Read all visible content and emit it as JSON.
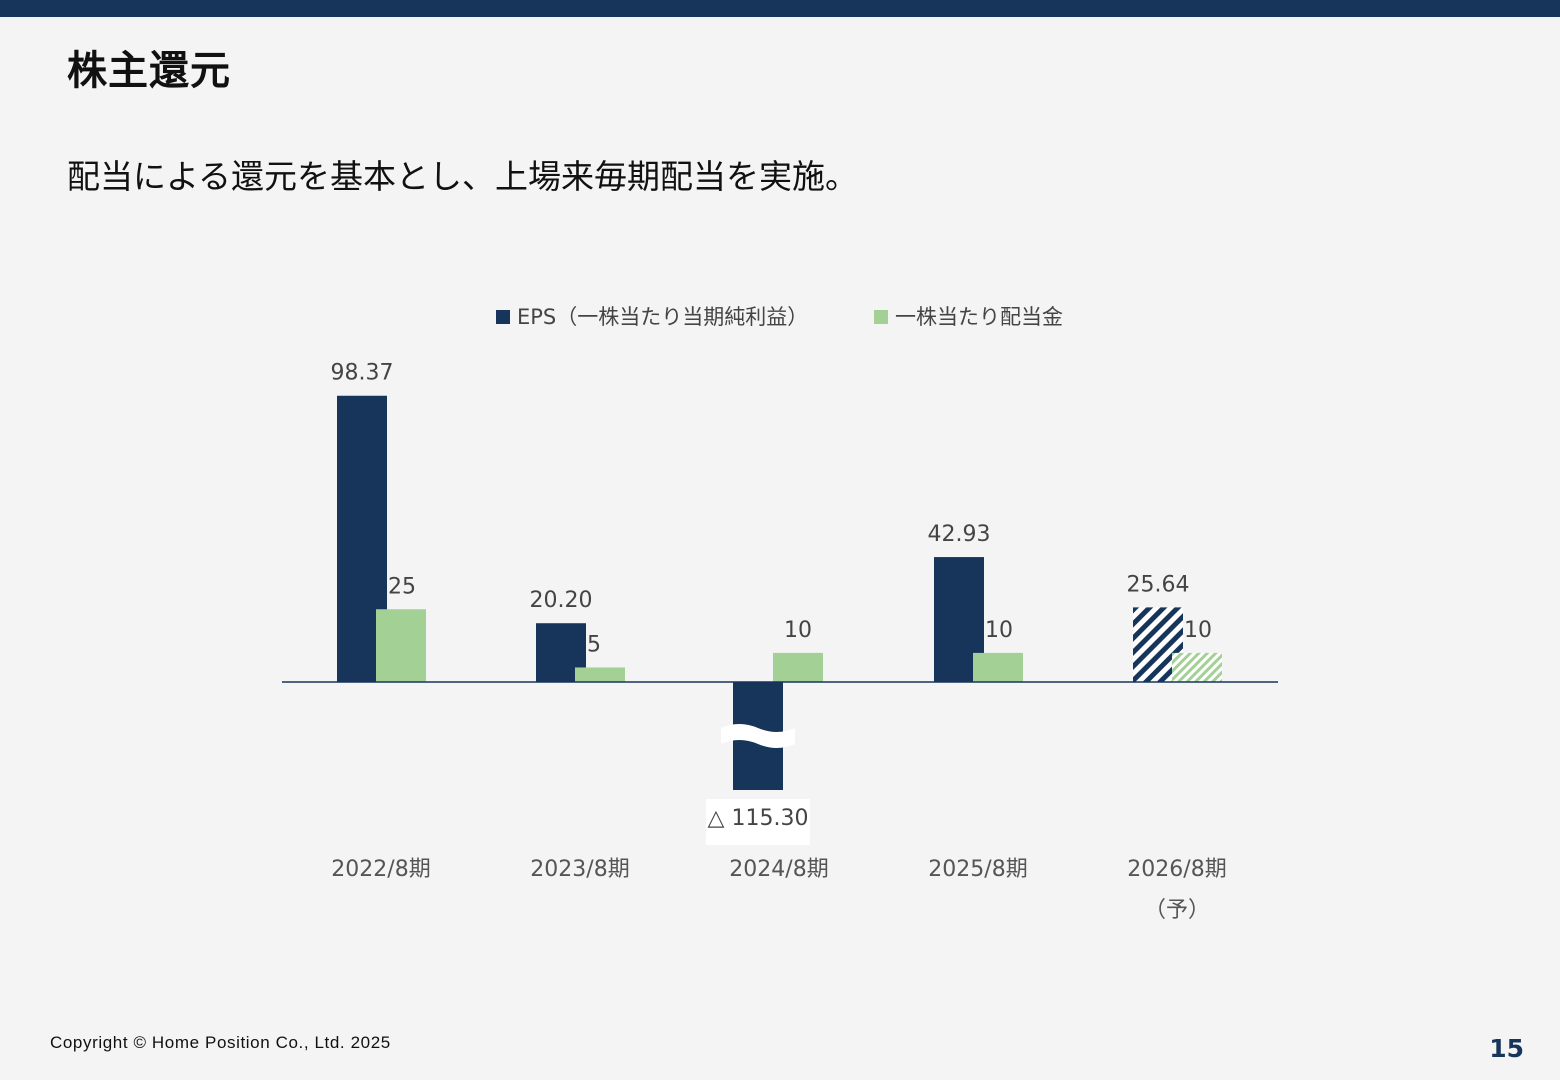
{
  "slide": {
    "title": "株主還元",
    "lead": "配当による還元を基本とし、上場来毎期配当を実施。",
    "copyright": "Copyright © Home Position Co., Ltd. 2025",
    "page_number": "15"
  },
  "colors": {
    "band": "#17355b",
    "eps": "#17355b",
    "dividend": "#a3d195",
    "text_dark": "#111111",
    "axis_text": "#555555"
  },
  "chart_data": {
    "type": "bar",
    "categories": [
      "2022/8期",
      "2023/8期",
      "2024/8期",
      "2025/8期",
      "2026/8期\n（予）"
    ],
    "series": [
      {
        "name": "EPS（一株当たり当期純利益）",
        "values": [
          98.37,
          20.2,
          -115.3,
          42.93,
          25.64
        ],
        "labels": [
          "98.37",
          "20.20",
          "△ 115.30",
          "42.93",
          "25.64"
        ],
        "forecast": [
          false,
          false,
          false,
          false,
          true
        ]
      },
      {
        "name": "一株当たり配当金",
        "values": [
          25,
          5,
          10,
          10,
          10
        ],
        "labels": [
          "25",
          "5",
          "10",
          "10",
          "10"
        ],
        "forecast": [
          false,
          false,
          false,
          false,
          true
        ]
      }
    ],
    "axis_break": "2024/8期 EPS bar is truncated with a break mark",
    "legend_position": "top-center",
    "grid": false
  }
}
